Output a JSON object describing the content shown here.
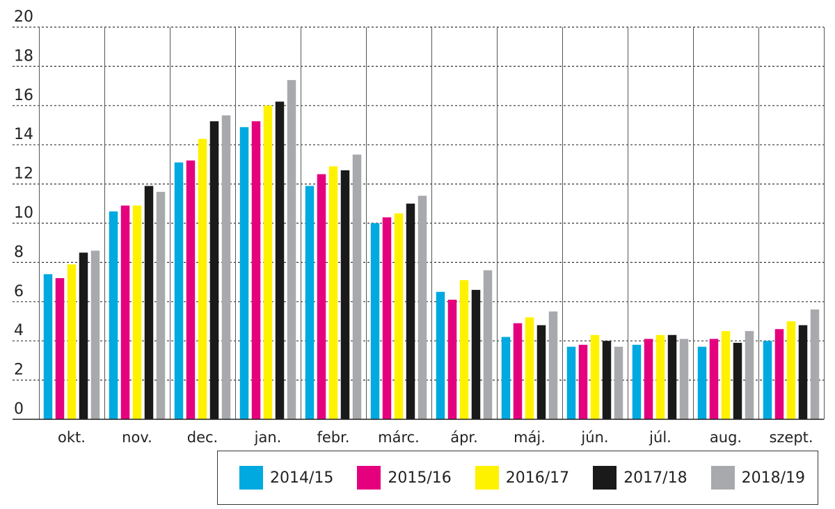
{
  "chart_data": {
    "type": "bar",
    "categories": [
      "okt.",
      "nov.",
      "dec.",
      "jan.",
      "febr.",
      "márc.",
      "ápr.",
      "máj.",
      "jún.",
      "júl.",
      "aug.",
      "szept."
    ],
    "series": [
      {
        "name": "2014/15",
        "color": "#00a9e0",
        "values": [
          7.4,
          10.6,
          13.1,
          14.9,
          11.9,
          10.0,
          6.5,
          4.2,
          3.7,
          3.8,
          3.7,
          4.0
        ]
      },
      {
        "name": "2015/16",
        "color": "#e5007e",
        "values": [
          7.2,
          10.9,
          13.2,
          15.2,
          12.5,
          10.3,
          6.1,
          4.9,
          3.8,
          4.1,
          4.1,
          4.6
        ]
      },
      {
        "name": "2016/17",
        "color": "#fff200",
        "values": [
          7.9,
          10.9,
          14.3,
          16.0,
          12.9,
          10.5,
          7.1,
          5.2,
          4.3,
          4.3,
          4.5,
          5.0
        ]
      },
      {
        "name": "2017/18",
        "color": "#1a1a1a",
        "values": [
          8.5,
          11.9,
          15.2,
          16.2,
          12.7,
          11.0,
          6.6,
          4.8,
          4.0,
          4.3,
          3.9,
          4.8
        ]
      },
      {
        "name": "2018/19",
        "color": "#a7a9ac",
        "values": [
          8.6,
          11.6,
          15.5,
          17.3,
          13.5,
          11.4,
          7.6,
          5.5,
          3.7,
          4.1,
          4.5,
          5.6
        ]
      }
    ],
    "y_ticks": [
      "0",
      "2",
      "4",
      "6",
      "8",
      "10",
      "12",
      "14",
      "16",
      "18",
      "20"
    ],
    "ylim": [
      0,
      20
    ],
    "grid": "horizontal dashed",
    "legend_position": "bottom-right"
  }
}
